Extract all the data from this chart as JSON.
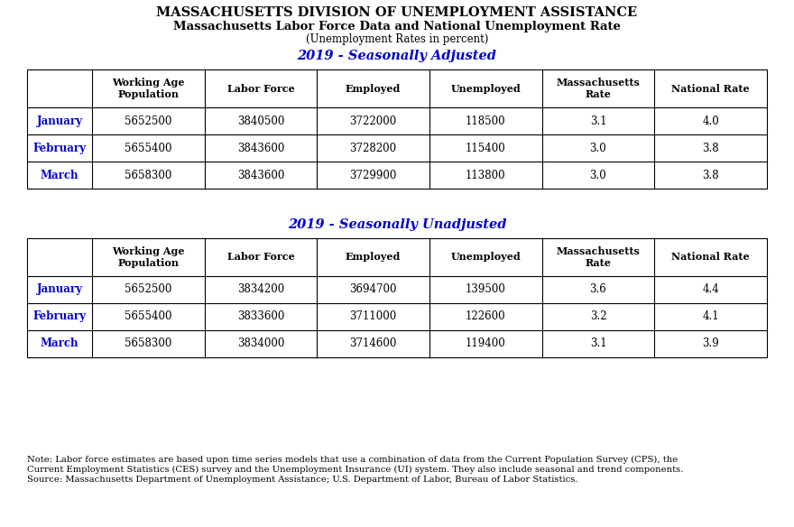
{
  "title1": "MASSACHUSETTS DIVISION OF UNEMPLOYMENT ASSISTANCE",
  "title2": "Massachusetts Labor Force Data and National Unemployment Rate",
  "title3": "(Unemployment Rates in percent)",
  "section1": "2019 - Seasonally Adjusted",
  "section2": "2019 - Seasonally Unadjusted",
  "col_headers": [
    "Working Age\nPopulation",
    "Labor Force",
    "Employed",
    "Unemployed",
    "Massachusetts\nRate",
    "National Rate"
  ],
  "row_labels": [
    "January",
    "February",
    "March"
  ],
  "row_label_color": "#0000CD",
  "adjusted_data": [
    [
      5652500,
      3840500,
      3722000,
      118500,
      3.1,
      4.0
    ],
    [
      5655400,
      3843600,
      3728200,
      115400,
      3.0,
      3.8
    ],
    [
      5658300,
      3843600,
      3729900,
      113800,
      3.0,
      3.8
    ]
  ],
  "unadjusted_data": [
    [
      5652500,
      3834200,
      3694700,
      139500,
      3.6,
      4.4
    ],
    [
      5655400,
      3833600,
      3711000,
      122600,
      3.2,
      4.1
    ],
    [
      5658300,
      3834000,
      3714600,
      119400,
      3.1,
      3.9
    ]
  ],
  "note_line1": "Note: Labor force estimates are based upon time series models that use a combination of data from the Current Population Survey (CPS), the",
  "note_line2": "Current Employment Statistics (CES) survey and the Unemployment Insurance (UI) system. They also include seasonal and trend components.",
  "note_line3": "Source: Massachusetts Department of Unemployment Assistance; U.S. Department of Labor, Bureau of Labor Statistics.",
  "bg_color": "#FFFFFF",
  "section_title_color": "#0000CD"
}
